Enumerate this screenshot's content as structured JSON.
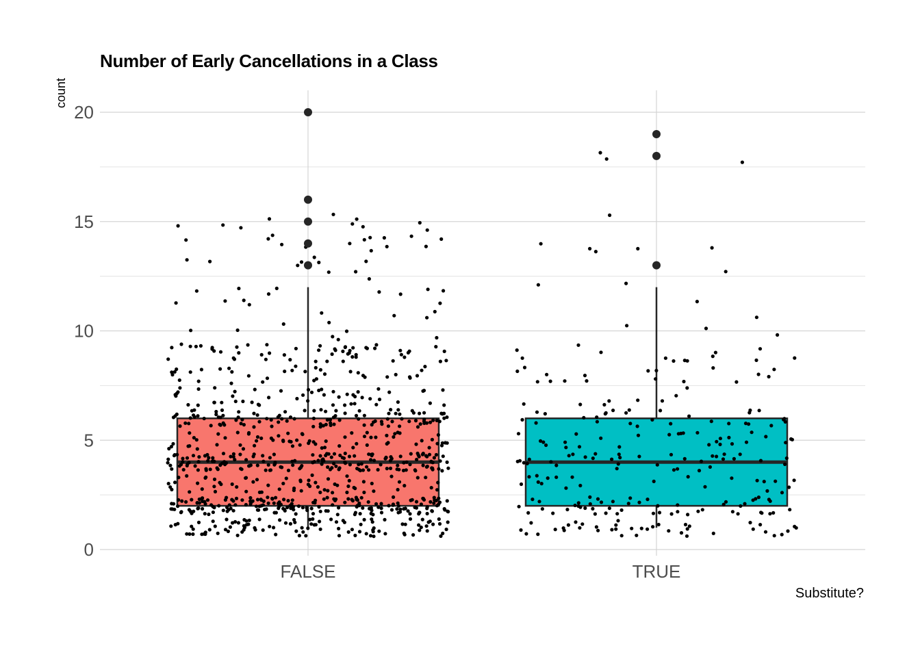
{
  "chart_data": {
    "type": "boxplot",
    "title": "Number of Early Cancellations in a Class",
    "xlabel": "Substitute?",
    "ylabel": "count",
    "categories": [
      "FALSE",
      "TRUE"
    ],
    "ylim": [
      0,
      21
    ],
    "yticks": [
      0,
      5,
      10,
      15,
      20
    ],
    "grid": true,
    "jitter_points": true,
    "colors": {
      "FALSE": "#F8766D",
      "TRUE": "#00BFC4",
      "box_outline": "#262626",
      "points": "#000000"
    },
    "boxes": [
      {
        "category": "FALSE",
        "min": 1,
        "q1": 2,
        "median": 4,
        "q3": 6,
        "max": 12,
        "outliers": [
          13,
          14,
          15,
          16,
          20
        ]
      },
      {
        "category": "TRUE",
        "min": 1,
        "q1": 2,
        "median": 4,
        "q3": 6,
        "max": 12,
        "outliers": [
          13,
          18,
          19
        ]
      }
    ]
  }
}
